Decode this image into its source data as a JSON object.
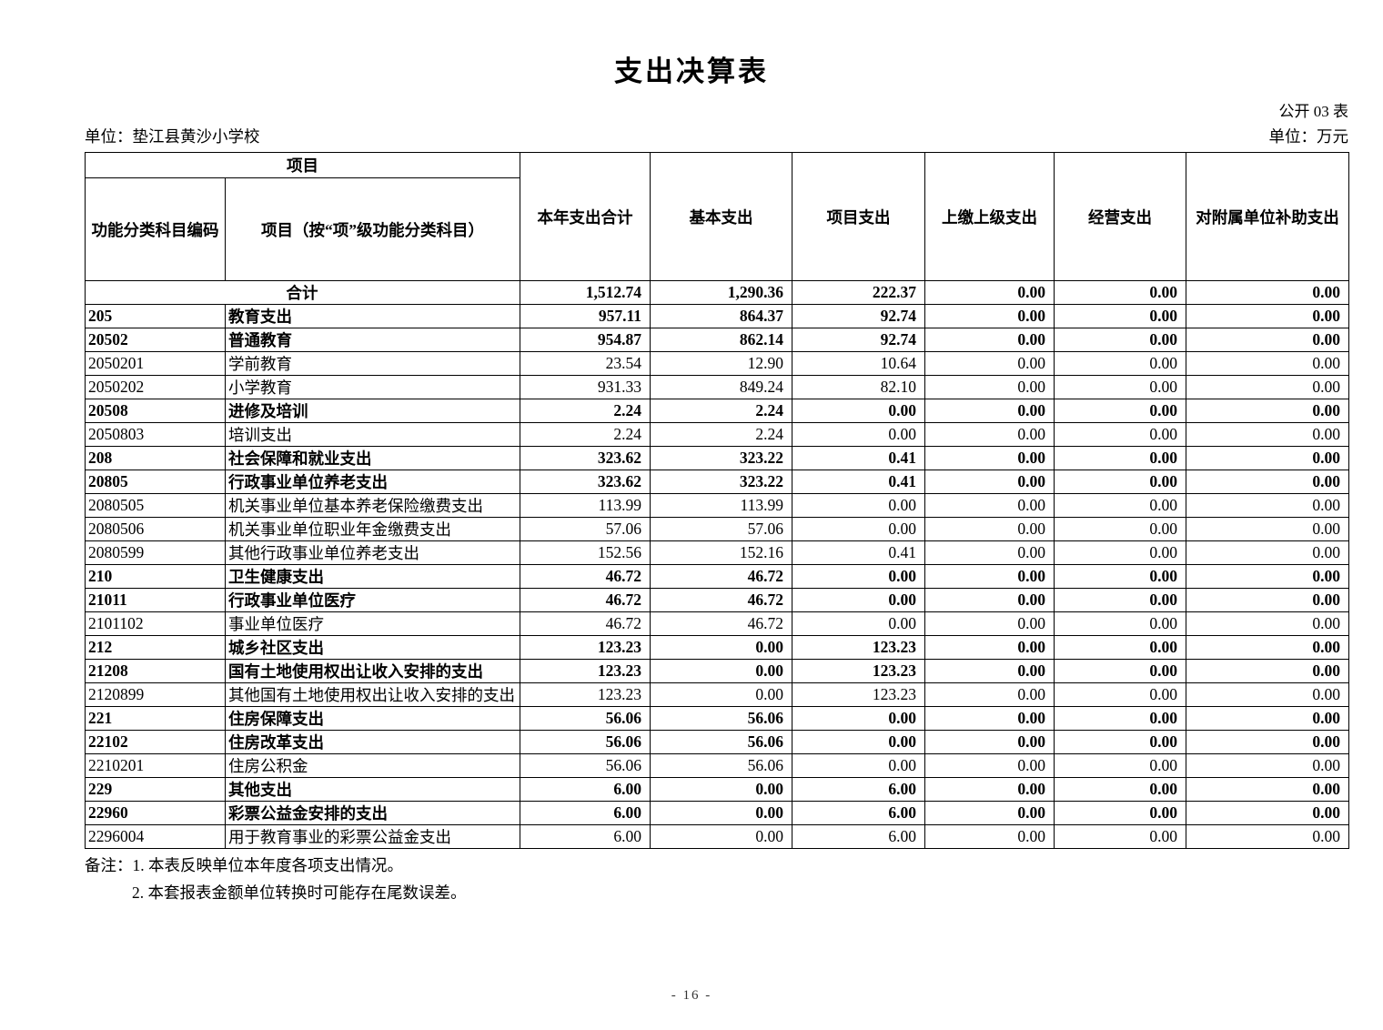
{
  "doc": {
    "title": "支出决算表",
    "table_code": "公开 03 表",
    "unit_left": "单位：垫江县黄沙小学校",
    "unit_right": "单位：万元",
    "page_number": "-  16  -"
  },
  "table": {
    "header": {
      "group_label": "项目",
      "col_code": "功能分类科目编码",
      "col_name": "项目（按“项”级功能分类科目）",
      "value_cols": [
        "本年支出合计",
        "基本支出",
        "项目支出",
        "上缴上级支出",
        "经营支出",
        "对附属单位补助支出"
      ]
    },
    "rows": [
      {
        "code": "",
        "name": "合计",
        "bold": true,
        "values": [
          "1,512.74",
          "1,290.36",
          "222.37",
          "0.00",
          "0.00",
          "0.00"
        ]
      },
      {
        "code": "205",
        "name": "教育支出",
        "bold": true,
        "values": [
          "957.11",
          "864.37",
          "92.74",
          "0.00",
          "0.00",
          "0.00"
        ]
      },
      {
        "code": "20502",
        "name": "普通教育",
        "bold": true,
        "values": [
          "954.87",
          "862.14",
          "92.74",
          "0.00",
          "0.00",
          "0.00"
        ]
      },
      {
        "code": "2050201",
        "name": "学前教育",
        "bold": false,
        "values": [
          "23.54",
          "12.90",
          "10.64",
          "0.00",
          "0.00",
          "0.00"
        ]
      },
      {
        "code": "2050202",
        "name": "小学教育",
        "bold": false,
        "values": [
          "931.33",
          "849.24",
          "82.10",
          "0.00",
          "0.00",
          "0.00"
        ]
      },
      {
        "code": "20508",
        "name": "进修及培训",
        "bold": true,
        "values": [
          "2.24",
          "2.24",
          "0.00",
          "0.00",
          "0.00",
          "0.00"
        ]
      },
      {
        "code": "2050803",
        "name": "培训支出",
        "bold": false,
        "values": [
          "2.24",
          "2.24",
          "0.00",
          "0.00",
          "0.00",
          "0.00"
        ]
      },
      {
        "code": "208",
        "name": "社会保障和就业支出",
        "bold": true,
        "values": [
          "323.62",
          "323.22",
          "0.41",
          "0.00",
          "0.00",
          "0.00"
        ]
      },
      {
        "code": "20805",
        "name": "行政事业单位养老支出",
        "bold": true,
        "values": [
          "323.62",
          "323.22",
          "0.41",
          "0.00",
          "0.00",
          "0.00"
        ]
      },
      {
        "code": "2080505",
        "name": "机关事业单位基本养老保险缴费支出",
        "bold": false,
        "values": [
          "113.99",
          "113.99",
          "0.00",
          "0.00",
          "0.00",
          "0.00"
        ]
      },
      {
        "code": "2080506",
        "name": "机关事业单位职业年金缴费支出",
        "bold": false,
        "values": [
          "57.06",
          "57.06",
          "0.00",
          "0.00",
          "0.00",
          "0.00"
        ]
      },
      {
        "code": "2080599",
        "name": "其他行政事业单位养老支出",
        "bold": false,
        "values": [
          "152.56",
          "152.16",
          "0.41",
          "0.00",
          "0.00",
          "0.00"
        ]
      },
      {
        "code": "210",
        "name": "卫生健康支出",
        "bold": true,
        "values": [
          "46.72",
          "46.72",
          "0.00",
          "0.00",
          "0.00",
          "0.00"
        ]
      },
      {
        "code": "21011",
        "name": "行政事业单位医疗",
        "bold": true,
        "values": [
          "46.72",
          "46.72",
          "0.00",
          "0.00",
          "0.00",
          "0.00"
        ]
      },
      {
        "code": "2101102",
        "name": "事业单位医疗",
        "bold": false,
        "values": [
          "46.72",
          "46.72",
          "0.00",
          "0.00",
          "0.00",
          "0.00"
        ]
      },
      {
        "code": "212",
        "name": "城乡社区支出",
        "bold": true,
        "values": [
          "123.23",
          "0.00",
          "123.23",
          "0.00",
          "0.00",
          "0.00"
        ]
      },
      {
        "code": "21208",
        "name": "国有土地使用权出让收入安排的支出",
        "bold": true,
        "values": [
          "123.23",
          "0.00",
          "123.23",
          "0.00",
          "0.00",
          "0.00"
        ]
      },
      {
        "code": "2120899",
        "name": "其他国有土地使用权出让收入安排的支出",
        "bold": false,
        "values": [
          "123.23",
          "0.00",
          "123.23",
          "0.00",
          "0.00",
          "0.00"
        ]
      },
      {
        "code": "221",
        "name": "住房保障支出",
        "bold": true,
        "values": [
          "56.06",
          "56.06",
          "0.00",
          "0.00",
          "0.00",
          "0.00"
        ]
      },
      {
        "code": "22102",
        "name": "住房改革支出",
        "bold": true,
        "values": [
          "56.06",
          "56.06",
          "0.00",
          "0.00",
          "0.00",
          "0.00"
        ]
      },
      {
        "code": "2210201",
        "name": "住房公积金",
        "bold": false,
        "values": [
          "56.06",
          "56.06",
          "0.00",
          "0.00",
          "0.00",
          "0.00"
        ]
      },
      {
        "code": "229",
        "name": "其他支出",
        "bold": true,
        "values": [
          "6.00",
          "0.00",
          "6.00",
          "0.00",
          "0.00",
          "0.00"
        ]
      },
      {
        "code": "22960",
        "name": "彩票公益金安排的支出",
        "bold": true,
        "values": [
          "6.00",
          "0.00",
          "6.00",
          "0.00",
          "0.00",
          "0.00"
        ]
      },
      {
        "code": "2296004",
        "name": "用于教育事业的彩票公益金支出",
        "bold": false,
        "values": [
          "6.00",
          "0.00",
          "6.00",
          "0.00",
          "0.00",
          "0.00"
        ]
      }
    ]
  },
  "notes": {
    "line1": "备注：1. 本表反映单位本年度各项支出情况。",
    "line2": "2. 本套报表金额单位转换时可能存在尾数误差。"
  }
}
